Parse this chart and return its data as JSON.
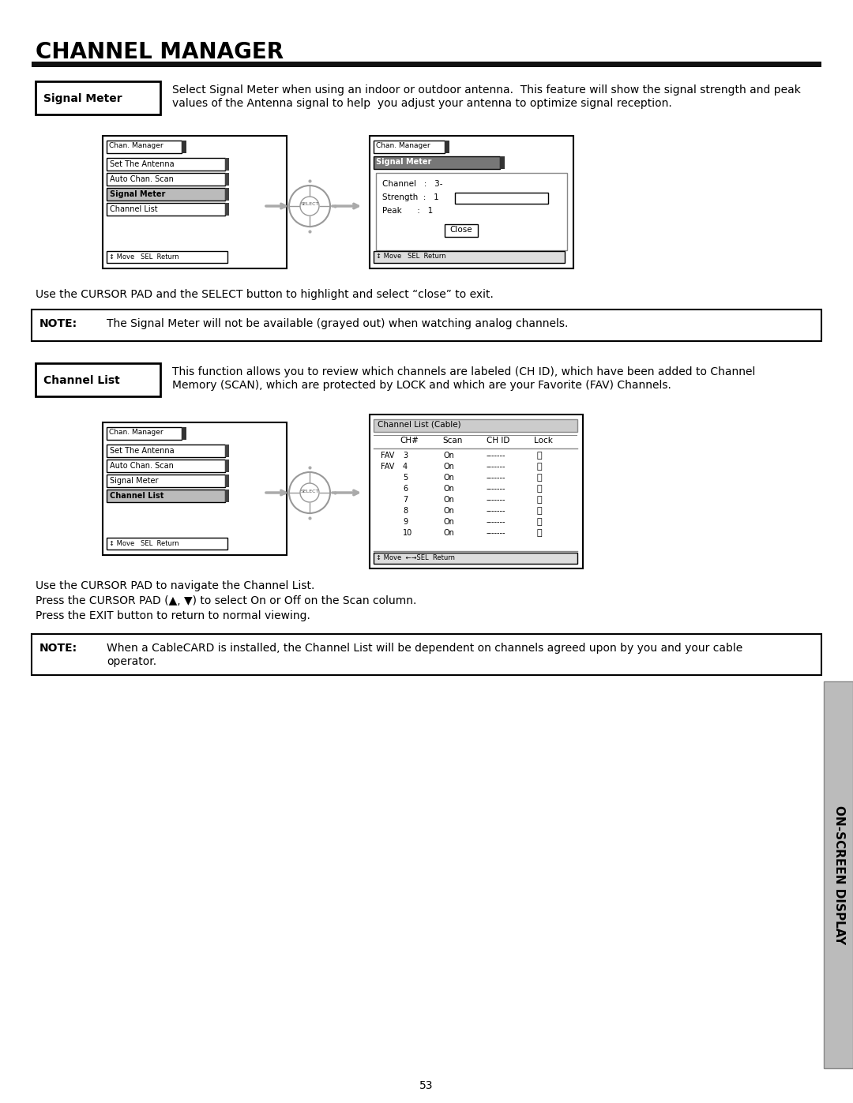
{
  "title": "CHANNEL MANAGER",
  "bg_color": "#ffffff",
  "page_number": "53",
  "signal_meter_label": "Signal Meter",
  "signal_meter_desc1": "Select Signal Meter when using an indoor or outdoor antenna.  This feature will show the signal strength and peak",
  "signal_meter_desc2": "values of the Antenna signal to help  you adjust your antenna to optimize signal reception.",
  "channel_list_label": "Channel List",
  "channel_list_desc1": "This function allows you to review which channels are labeled (CH ID), which have been added to Channel",
  "channel_list_desc2": "Memory (SCAN), which are protected by LOCK and which are your Favorite (FAV) Channels.",
  "cursor_note1": "Use the CURSOR PAD and the SELECT button to highlight and select “close” to exit.",
  "note1_label": "NOTE:",
  "note1_text": "The Signal Meter will not be available (grayed out) when watching analog channels.",
  "cursor_note2a": "Use the CURSOR PAD to navigate the Channel List.",
  "cursor_note2b": "Press the CURSOR PAD (▲, ▼) to select On or Off on the Scan column.",
  "cursor_note2c": "Press the EXIT button to return to normal viewing.",
  "note2_label": "NOTE:",
  "note2_text1": "When a CableCARD is installed, the Channel List will be dependent on channels agreed upon by you and your cable",
  "note2_text2": "operator.",
  "sidebar_text": "ON-SCREEN DISPLAY"
}
